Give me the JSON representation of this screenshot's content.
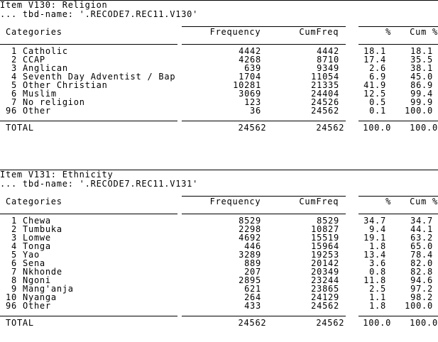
{
  "colors": {
    "text": "#000000",
    "background": "#ffffff",
    "rule": "#000000"
  },
  "tables": [
    {
      "title": "Item V130: Religion",
      "subtitle": "... tbd-name: '.RECODE7.REC11.V130'",
      "headers": {
        "categories": "Categories",
        "frequency": "Frequency",
        "cumfreq": "CumFreq",
        "pct": "%",
        "cumpct": "Cum %"
      },
      "rows": [
        {
          "num": "1",
          "label": "Catholic",
          "freq": "4442",
          "cumfreq": "4442",
          "pct": "18.1",
          "cumpct": "18.1"
        },
        {
          "num": "2",
          "label": "CCAP",
          "freq": "4268",
          "cumfreq": "8710",
          "pct": "17.4",
          "cumpct": "35.5"
        },
        {
          "num": "3",
          "label": "Anglican",
          "freq": "639",
          "cumfreq": "9349",
          "pct": "2.6",
          "cumpct": "38.1"
        },
        {
          "num": "4",
          "label": "Seventh Day Adventist / Bap",
          "freq": "1704",
          "cumfreq": "11054",
          "pct": "6.9",
          "cumpct": "45.0"
        },
        {
          "num": "5",
          "label": "Other Christian",
          "freq": "10281",
          "cumfreq": "21335",
          "pct": "41.9",
          "cumpct": "86.9"
        },
        {
          "num": "6",
          "label": "Muslim",
          "freq": "3069",
          "cumfreq": "24404",
          "pct": "12.5",
          "cumpct": "99.4"
        },
        {
          "num": "7",
          "label": "No religion",
          "freq": "123",
          "cumfreq": "24526",
          "pct": "0.5",
          "cumpct": "99.9"
        },
        {
          "num": "96",
          "label": "Other",
          "freq": "36",
          "cumfreq": "24562",
          "pct": "0.1",
          "cumpct": "100.0"
        }
      ],
      "total": {
        "label": "TOTAL",
        "freq": "24562",
        "cumfreq": "24562",
        "pct": "100.0",
        "cumpct": "100.0"
      }
    },
    {
      "title": "Item V131: Ethnicity",
      "subtitle": "... tbd-name: '.RECODE7.REC11.V131'",
      "headers": {
        "categories": "Categories",
        "frequency": "Frequency",
        "cumfreq": "CumFreq",
        "pct": "%",
        "cumpct": "Cum %"
      },
      "rows": [
        {
          "num": "1",
          "label": "Chewa",
          "freq": "8529",
          "cumfreq": "8529",
          "pct": "34.7",
          "cumpct": "34.7"
        },
        {
          "num": "2",
          "label": "Tumbuka",
          "freq": "2298",
          "cumfreq": "10827",
          "pct": "9.4",
          "cumpct": "44.1"
        },
        {
          "num": "3",
          "label": "Lomwe",
          "freq": "4692",
          "cumfreq": "15519",
          "pct": "19.1",
          "cumpct": "63.2"
        },
        {
          "num": "4",
          "label": "Tonga",
          "freq": "446",
          "cumfreq": "15964",
          "pct": "1.8",
          "cumpct": "65.0"
        },
        {
          "num": "5",
          "label": "Yao",
          "freq": "3289",
          "cumfreq": "19253",
          "pct": "13.4",
          "cumpct": "78.4"
        },
        {
          "num": "6",
          "label": "Sena",
          "freq": "889",
          "cumfreq": "20142",
          "pct": "3.6",
          "cumpct": "82.0"
        },
        {
          "num": "7",
          "label": "Nkhonde",
          "freq": "207",
          "cumfreq": "20349",
          "pct": "0.8",
          "cumpct": "82.8"
        },
        {
          "num": "8",
          "label": "Ngoni",
          "freq": "2895",
          "cumfreq": "23244",
          "pct": "11.8",
          "cumpct": "94.6"
        },
        {
          "num": "9",
          "label": "Mang'anja",
          "freq": "621",
          "cumfreq": "23865",
          "pct": "2.5",
          "cumpct": "97.2"
        },
        {
          "num": "10",
          "label": "Nyanga",
          "freq": "264",
          "cumfreq": "24129",
          "pct": "1.1",
          "cumpct": "98.2"
        },
        {
          "num": "96",
          "label": "Other",
          "freq": "433",
          "cumfreq": "24562",
          "pct": "1.8",
          "cumpct": "100.0"
        }
      ],
      "total": {
        "label": "TOTAL",
        "freq": "24562",
        "cumfreq": "24562",
        "pct": "100.0",
        "cumpct": "100.0"
      }
    }
  ]
}
